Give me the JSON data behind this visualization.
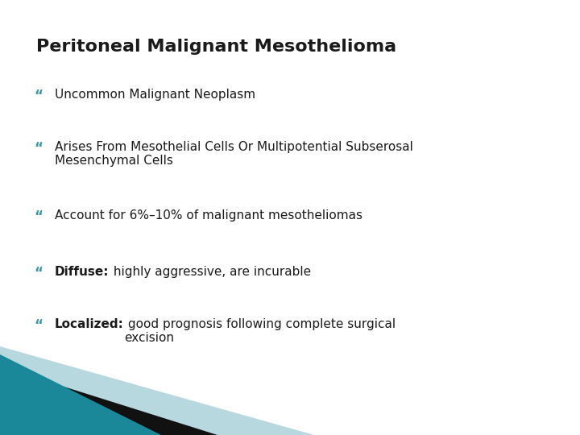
{
  "title": "Peritoneal Malignant Mesothelioma",
  "title_color": "#1a1a1a",
  "title_fontsize": 16,
  "title_bold": true,
  "background_color": "#ffffff",
  "bullet_color": "#3399aa",
  "bullet_char": "“",
  "text_color": "#1a1a1a",
  "text_fontsize": 11,
  "bullets": [
    {
      "prefix": "",
      "text": "Uncommon Malignant Neoplasm",
      "has_bold_prefix": false
    },
    {
      "prefix": "",
      "text": "Arises From Mesothelial Cells Or Multipotential Subserosal\nMesenchymal Cells",
      "has_bold_prefix": false
    },
    {
      "prefix": "",
      "text": "Account for 6%–10% of malignant mesotheliomas",
      "has_bold_prefix": false
    },
    {
      "prefix": "Diffuse:",
      "text": " highly aggressive, are incurable",
      "has_bold_prefix": true
    },
    {
      "prefix": "Localized:",
      "text": " good prognosis following complete surgical\nexcision",
      "has_bold_prefix": true
    }
  ],
  "corner_teal": "#1a8899",
  "corner_black": "#111111",
  "corner_lightblue": "#b8d8e0"
}
